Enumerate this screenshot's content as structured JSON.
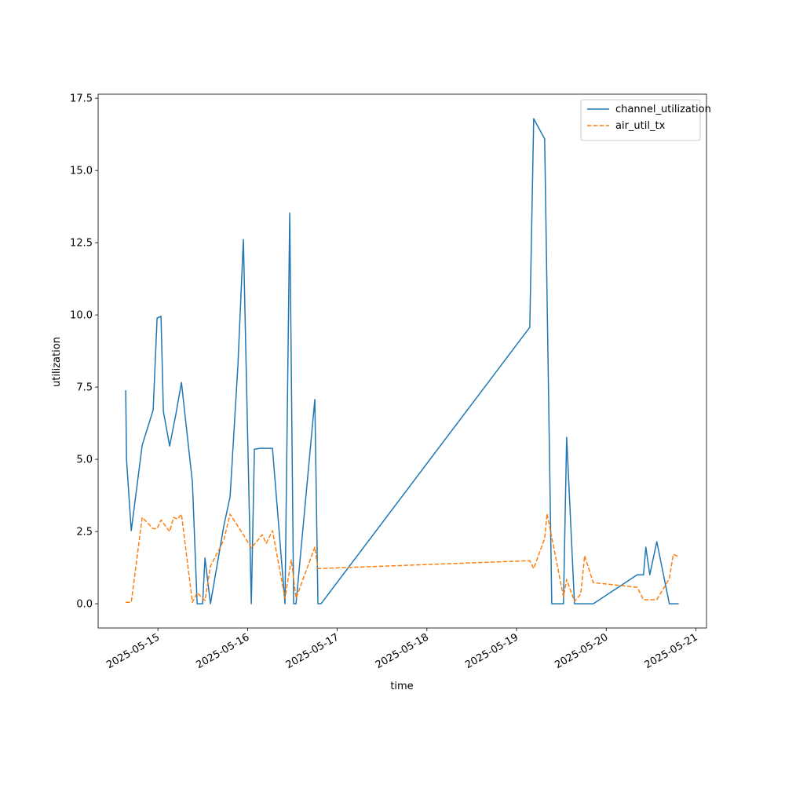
{
  "chart_data": {
    "type": "line",
    "xlabel": "time",
    "ylabel": "utilization",
    "xlim": [
      "2025-05-14T08:00",
      "2025-05-21T02:50"
    ],
    "xticks": [
      "2025-05-15",
      "2025-05-16",
      "2025-05-17",
      "2025-05-18",
      "2025-05-19",
      "2025-05-20",
      "2025-05-21"
    ],
    "ylim": [
      -0.84,
      17.64
    ],
    "yticks": [
      {
        "value": 0,
        "label": "0.0"
      },
      2.5,
      {
        "value": 5,
        "label": "5.0"
      },
      7.5,
      {
        "value": 10,
        "label": "10.0"
      },
      12.5,
      {
        "value": 15,
        "label": "15.0"
      },
      17.5
    ],
    "legend": "upper right",
    "series": [
      {
        "name": "channel_utilization",
        "color": "#1f77b4",
        "style": "solid",
        "x": [
          "2025-05-14T15:23",
          "2025-05-14T15:36",
          "2025-05-14T16:52",
          "2025-05-14T19:48",
          "2025-05-14T22:44",
          "2025-05-14T23:47",
          "2025-05-15T00:50",
          "2025-05-15T01:28",
          "2025-05-15T03:09",
          "2025-05-15T04:50",
          "2025-05-15T06:18",
          "2025-05-15T09:14",
          "2025-05-15T10:30",
          "2025-05-15T11:58",
          "2025-05-15T12:36",
          "2025-05-15T14:04",
          "2025-05-15T17:38",
          "2025-05-15T19:19",
          "2025-05-15T21:25",
          "2025-05-15T22:53",
          "2025-05-16T01:00",
          "2025-05-16T01:50",
          "2025-05-16T03:18",
          "2025-05-16T06:40",
          "2025-05-16T10:01",
          "2025-05-16T11:17",
          "2025-05-16T12:20",
          "2025-05-16T12:58",
          "2025-05-16T18:00",
          "2025-05-16T18:50",
          "2025-05-16T19:40",
          "2025-05-19T03:32",
          "2025-05-19T04:35",
          "2025-05-19T07:31",
          "2025-05-19T09:25",
          "2025-05-19T12:33",
          "2025-05-19T13:24",
          "2025-05-19T15:30",
          "2025-05-19T20:32",
          "2025-05-20T08:17",
          "2025-05-20T09:58",
          "2025-05-20T10:36",
          "2025-05-20T11:39",
          "2025-05-20T13:32",
          "2025-05-20T16:53",
          "2025-05-20T19:24"
        ],
        "values": [
          7.39,
          5.0,
          2.53,
          5.49,
          6.71,
          9.89,
          9.95,
          6.66,
          5.46,
          6.58,
          7.66,
          4.21,
          0,
          0,
          1.58,
          0,
          2.69,
          3.7,
          8.26,
          12.61,
          0,
          5.35,
          5.38,
          5.38,
          0,
          13.53,
          0,
          0,
          7.07,
          0,
          0,
          9.57,
          16.79,
          16.09,
          0,
          0,
          5.76,
          0,
          0,
          1.0,
          1.0,
          1.96,
          1.0,
          2.15,
          0,
          0
        ]
      },
      {
        "name": "air_util_tx",
        "color": "#ff7f0e",
        "style": "dashed",
        "x": [
          "2025-05-14T15:23",
          "2025-05-14T16:52",
          "2025-05-14T19:48",
          "2025-05-14T22:44",
          "2025-05-14T23:47",
          "2025-05-15T00:50",
          "2025-05-15T03:09",
          "2025-05-15T04:12",
          "2025-05-15T05:15",
          "2025-05-15T06:18",
          "2025-05-15T09:14",
          "2025-05-15T10:30",
          "2025-05-15T12:36",
          "2025-05-15T14:04",
          "2025-05-15T17:38",
          "2025-05-15T19:19",
          "2025-05-15T22:53",
          "2025-05-16T01:00",
          "2025-05-16T03:56",
          "2025-05-16T04:59",
          "2025-05-16T06:40",
          "2025-05-16T10:01",
          "2025-05-16T11:42",
          "2025-05-16T12:58",
          "2025-05-16T18:00",
          "2025-05-16T18:50",
          "2025-05-16T19:40",
          "2025-05-19T03:32",
          "2025-05-19T04:35",
          "2025-05-19T07:31",
          "2025-05-19T08:10",
          "2025-05-19T12:33",
          "2025-05-19T13:24",
          "2025-05-19T15:30",
          "2025-05-19T17:10",
          "2025-05-19T18:13",
          "2025-05-19T20:32",
          "2025-05-20T08:17",
          "2025-05-20T09:58",
          "2025-05-20T11:39",
          "2025-05-20T13:32",
          "2025-05-20T16:53",
          "2025-05-20T17:56",
          "2025-05-20T19:24"
        ],
        "values": [
          0.05,
          0.05,
          2.99,
          2.6,
          2.6,
          2.9,
          2.5,
          2.99,
          2.93,
          3.1,
          0.05,
          0.38,
          0.11,
          1.3,
          2.2,
          3.1,
          2.39,
          1.93,
          2.39,
          2.09,
          2.53,
          0.19,
          1.52,
          0.19,
          1.96,
          1.22,
          1.22,
          1.49,
          1.22,
          2.26,
          3.12,
          0.24,
          0.84,
          0.08,
          0.33,
          1.66,
          0.73,
          0.57,
          0.14,
          0.14,
          0.14,
          0.87,
          1.71,
          1.63
        ]
      }
    ]
  }
}
